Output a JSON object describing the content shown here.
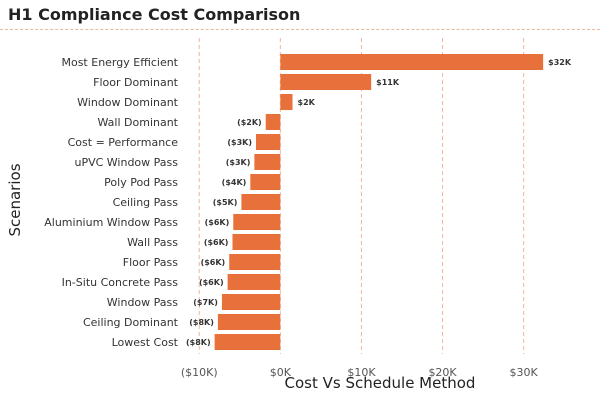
{
  "chart_data": {
    "type": "bar",
    "orientation": "horizontal",
    "title": "H1 Compliance Cost Comparison",
    "xlabel": "Cost Vs Schedule Method",
    "ylabel": "Scenarios",
    "xlim": [
      -12000,
      33000
    ],
    "xticks": [
      -10000,
      0,
      10000,
      20000,
      30000
    ],
    "xtick_labels": [
      "($10K)",
      "$0K",
      "$10K",
      "$20K",
      "$30K"
    ],
    "grid": "vertical dashed",
    "bar_color": "#e8703a",
    "categories": [
      "Most Energy Efficient",
      "Floor Dominant",
      "Window Dominant",
      "Wall Dominant",
      "Cost = Performance",
      "uPVC Window Pass",
      "Poly Pod Pass",
      "Ceiling Pass",
      "Aluminium Window Pass",
      "Wall Pass",
      "Floor Pass",
      "In-Situ Concrete Pass",
      "Window Pass",
      "Ceiling Dominant",
      "Lowest Cost"
    ],
    "values": [
      32400,
      11200,
      1500,
      -1800,
      -3000,
      -3200,
      -3700,
      -4800,
      -5800,
      -5900,
      -6300,
      -6500,
      -7200,
      -7700,
      -8100
    ],
    "value_labels": [
      "$32K",
      "$11K",
      "$2K",
      "($2K)",
      "($3K)",
      "($3K)",
      "($4K)",
      "($5K)",
      "($6K)",
      "($6K)",
      "($6K)",
      "($6K)",
      "($7K)",
      "($8K)",
      "($8K)"
    ]
  }
}
